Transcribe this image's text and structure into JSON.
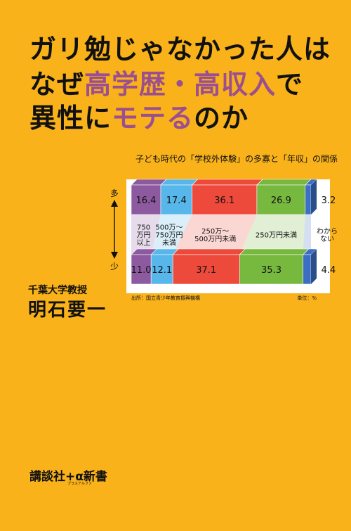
{
  "title": {
    "line1": "ガリ勉じゃなかった人は",
    "line2_a": "なぜ",
    "line2_b": "高学歴・高収入",
    "line2_c": "で",
    "line3_a": "異性に",
    "line3_b": "モテる",
    "line3_c": "のか"
  },
  "author": {
    "role": "千葉大学教授",
    "name": "明石要一"
  },
  "imprint": {
    "label": "講談社+α新書",
    "sub": "プラスアルファ"
  },
  "chart_data": {
    "type": "bar",
    "title": "子ども時代の「学校外体験」の多寡と「年収」の関係",
    "rows": [
      "多",
      "少"
    ],
    "categories": [
      "750万円以上",
      "500万〜750万円未満",
      "250万〜500万円未満",
      "250万円未満",
      "わからない"
    ],
    "category_lines": [
      [
        "750",
        "万円",
        "以上"
      ],
      [
        "500万〜",
        "750万円",
        "未満"
      ],
      [
        "250万〜",
        "500万円未満"
      ],
      [
        "250万円未満"
      ],
      [
        "わから",
        "ない"
      ]
    ],
    "series": [
      {
        "name": "多",
        "values": [
          16.4,
          17.4,
          36.1,
          26.9,
          3.2
        ]
      },
      {
        "name": "少",
        "values": [
          11.0,
          12.1,
          37.1,
          35.3,
          4.4
        ]
      }
    ],
    "source": "出所：国立青少年教育振興機構",
    "unit": "単位：%",
    "colors": [
      "#8d5aa0",
      "#58b7ea",
      "#ee4a3b",
      "#77b83e",
      "#3c6fc4"
    ]
  }
}
